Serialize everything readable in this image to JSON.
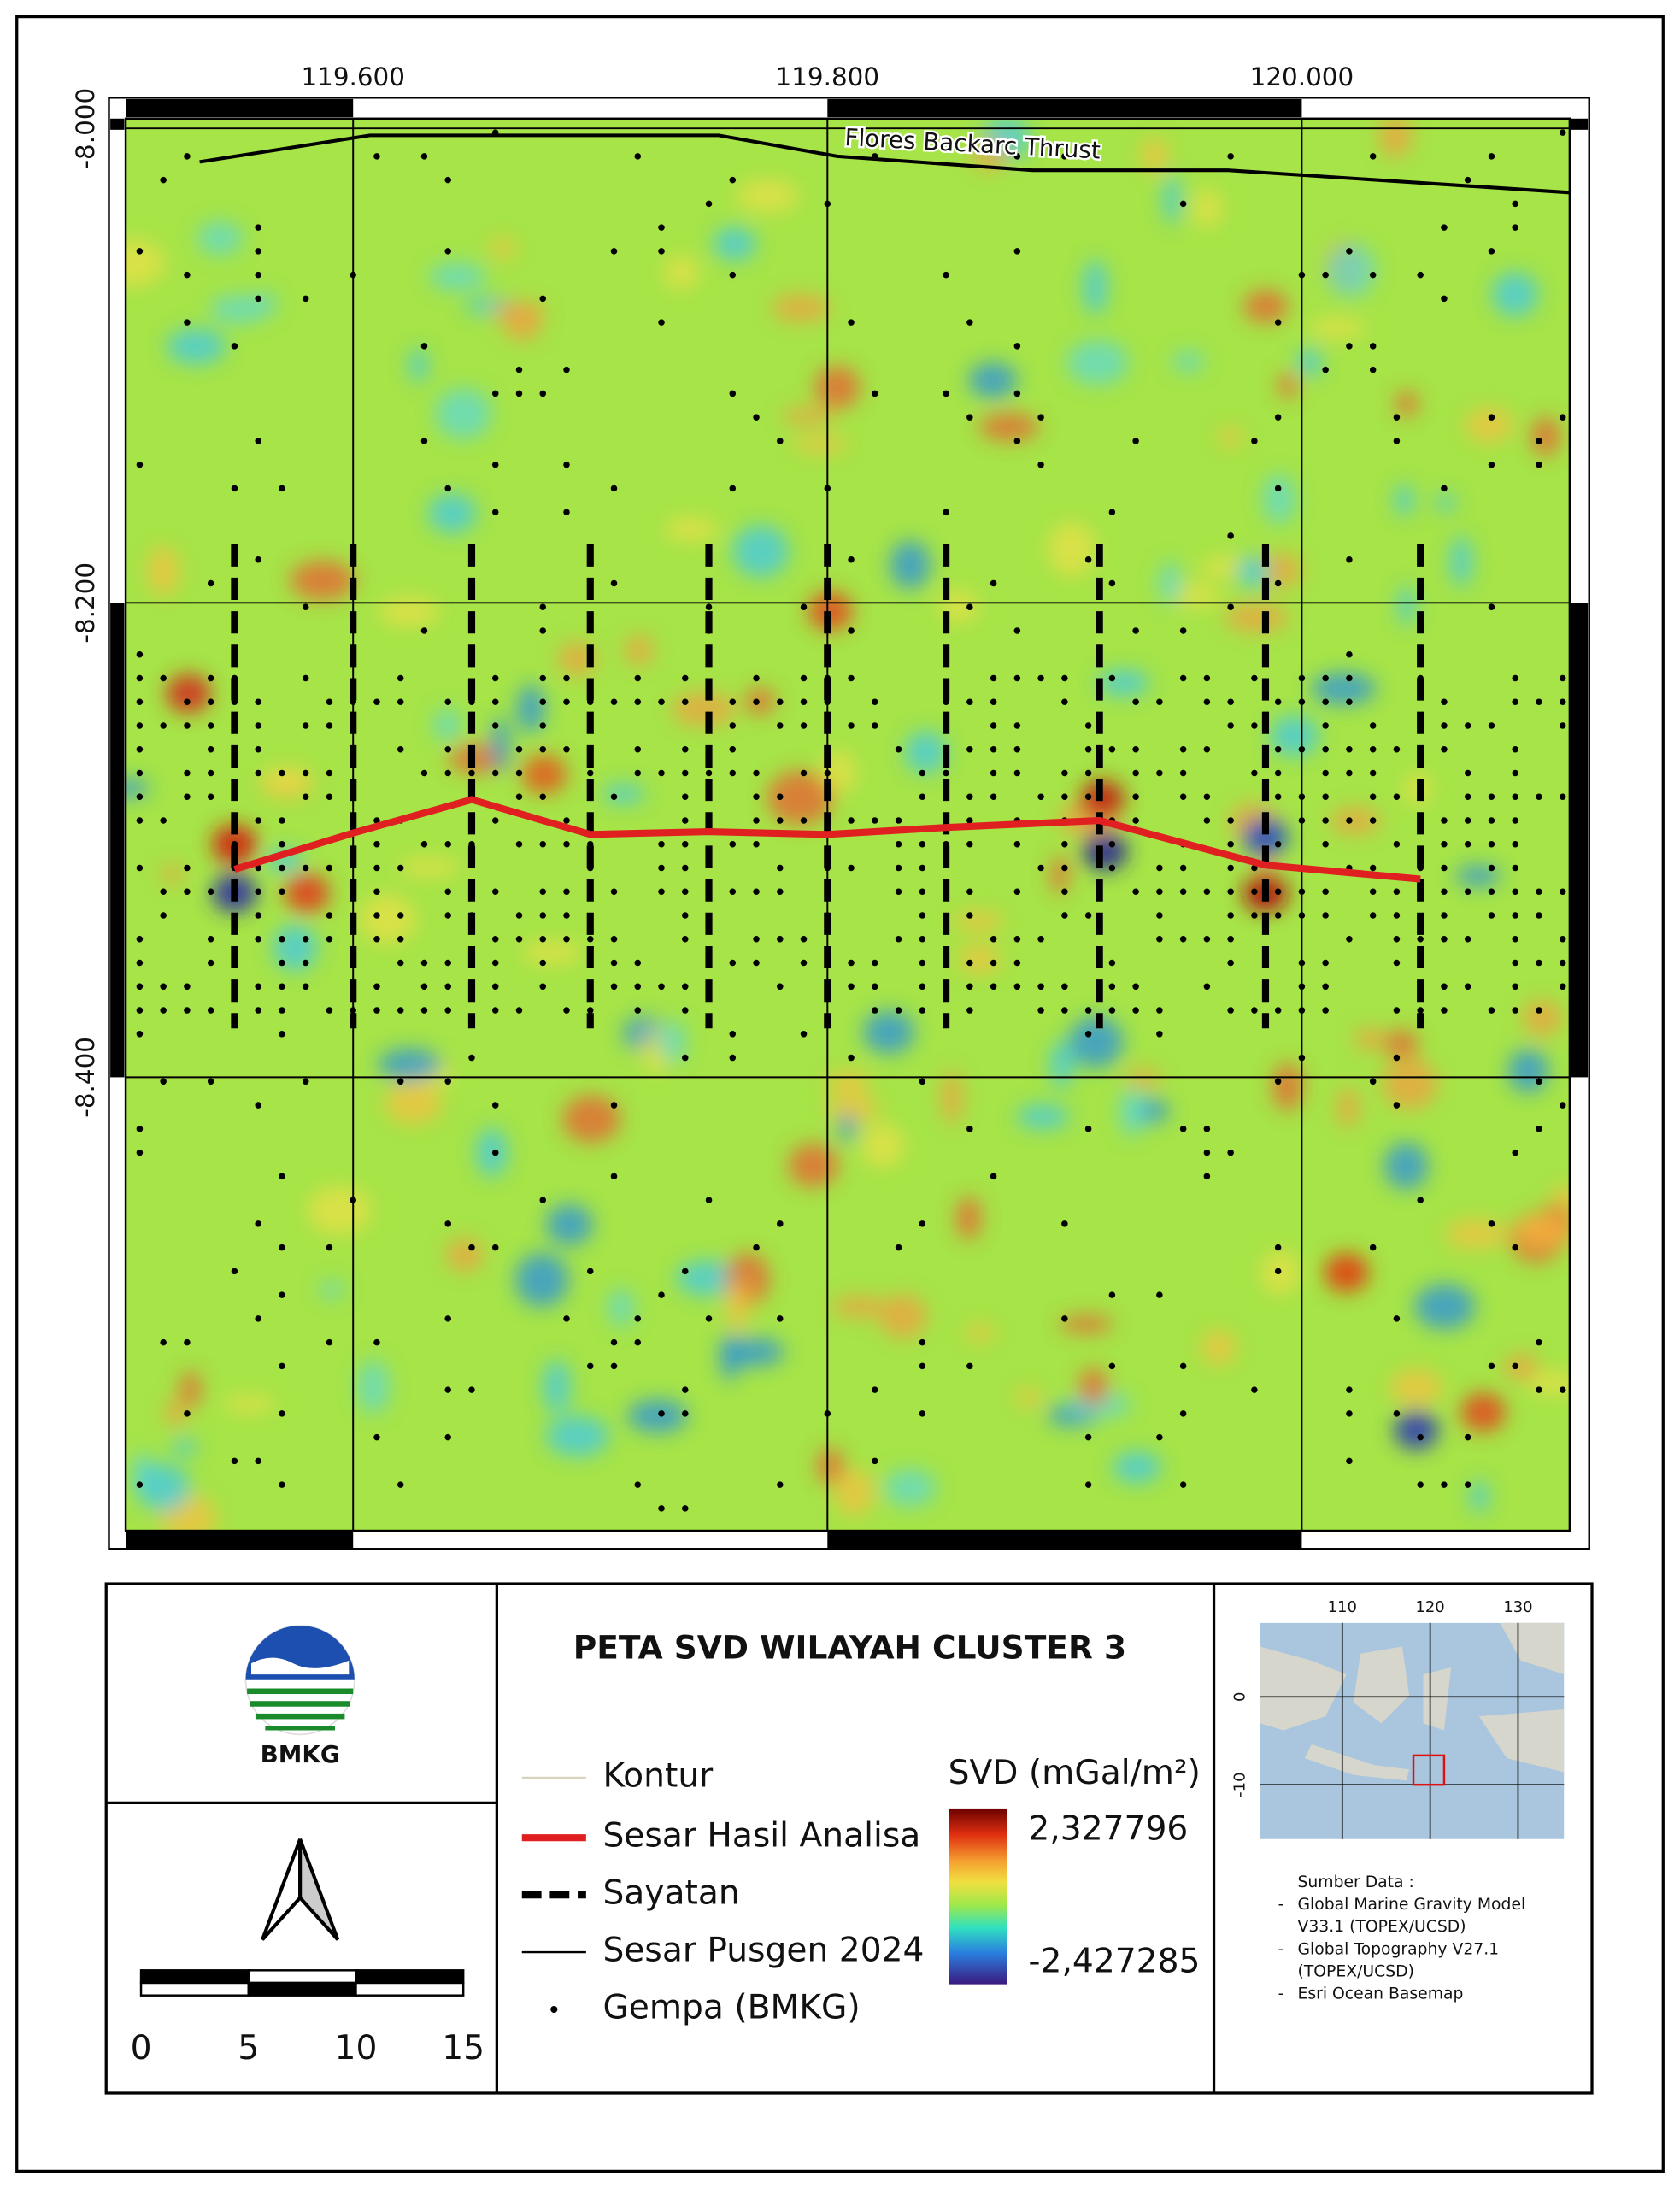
{
  "map": {
    "x_ticks": [
      "119.600",
      "119.800",
      "120.000"
    ],
    "y_ticks": [
      "-8.000",
      "-8.200",
      "-8.400"
    ],
    "fault_label": "Flores Backarc Thrust"
  },
  "header": {
    "logo_text": "BMKG",
    "title": "PETA SVD WILAYAH CLUSTER 3"
  },
  "scale_bar": {
    "labels": [
      "0",
      "5",
      "10",
      "15"
    ]
  },
  "legend": {
    "items": [
      "Kontur",
      "Sesar Hasil Analisa",
      "Sayatan",
      "Sesar Pusgen 2024",
      "Gempa (BMKG)"
    ],
    "colorbar": {
      "title": "SVD (mGal/m²)",
      "max_label": "2,327796",
      "min_label": "-2,427285"
    }
  },
  "inset": {
    "x_ticks": [
      "110",
      "120",
      "130"
    ],
    "y_ticks": [
      "0",
      "-10"
    ],
    "source_title": "Sumber Data :",
    "sources": [
      [
        "Global Marine Gravity Model",
        "V33.1 (TOPEX/UCSD)"
      ],
      [
        "Global Topography V27.1",
        "(TOPEX/UCSD)"
      ],
      [
        "Esri Ocean Basemap"
      ]
    ]
  }
}
